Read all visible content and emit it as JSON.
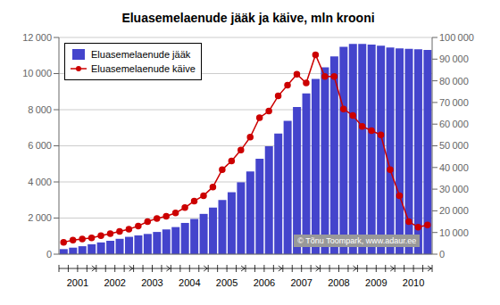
{
  "chart_data": {
    "type": "bar",
    "title": "Eluasemelaenude jääk ja käive, mln krooni",
    "categories": [
      "2001",
      null,
      null,
      null,
      "2002",
      null,
      null,
      null,
      "2003",
      null,
      null,
      null,
      "2004",
      null,
      null,
      null,
      "2005",
      null,
      null,
      null,
      "2006",
      null,
      null,
      null,
      "2007",
      null,
      null,
      null,
      "2008",
      null,
      null,
      null,
      "2009",
      null,
      null,
      null,
      "2010",
      null,
      null,
      null
    ],
    "series": [
      {
        "name": "Eluasemelaenude jääk",
        "type": "bar",
        "color": "#4444CC",
        "values": [
          280,
          360,
          440,
          550,
          650,
          740,
          850,
          960,
          1040,
          1120,
          1230,
          1370,
          1500,
          1730,
          1950,
          2230,
          2580,
          3000,
          3430,
          3980,
          4580,
          5280,
          5980,
          6680,
          7380,
          8150,
          8900,
          9700,
          10350,
          10950,
          11480,
          11640,
          11640,
          11600,
          11540,
          11440,
          11390,
          11370,
          11340,
          11310
        ]
      },
      {
        "name": "Eluasemelaenude käive",
        "type": "line",
        "color": "#CC0000",
        "marker": "circle",
        "axis": "y2",
        "values": [
          5500,
          6500,
          7000,
          7500,
          8500,
          9500,
          10500,
          11500,
          13000,
          15000,
          16500,
          17500,
          19000,
          21500,
          24500,
          27000,
          31000,
          39000,
          43000,
          48000,
          54000,
          63000,
          66000,
          73000,
          78000,
          83000,
          79000,
          92000,
          82000,
          82000,
          67000,
          64000,
          59000,
          57000,
          55000,
          39000,
          27000,
          15000,
          12500,
          13500
        ]
      }
    ],
    "ylim": [
      0,
      12000
    ],
    "yticks": [
      0,
      {
        "value": 2000,
        "label": "2 000"
      },
      {
        "value": 4000,
        "label": "4 000"
      },
      {
        "value": 6000,
        "label": "6 000"
      },
      {
        "value": 8000,
        "label": "8 000"
      },
      {
        "value": 10000,
        "label": "10 000"
      },
      {
        "value": 12000,
        "label": "12 000"
      }
    ],
    "y2lim": [
      0,
      100000
    ],
    "y2ticks": [
      0,
      {
        "value": 10000,
        "label": "10 000"
      },
      {
        "value": 20000,
        "label": "20 000"
      },
      {
        "value": 30000,
        "label": "30 000"
      },
      {
        "value": 40000,
        "label": "40 000"
      },
      {
        "value": 50000,
        "label": "50 000"
      },
      {
        "value": 60000,
        "label": "60 000"
      },
      {
        "value": 70000,
        "label": "70 000"
      },
      {
        "value": 80000,
        "label": "80 000"
      },
      {
        "value": 90000,
        "label": "90 000"
      },
      {
        "value": 100000,
        "label": "100 000"
      }
    ],
    "grid": true,
    "legend": "upper left",
    "annotations": [
      "© Tõnu Toompark, www.adaur.ee"
    ]
  }
}
